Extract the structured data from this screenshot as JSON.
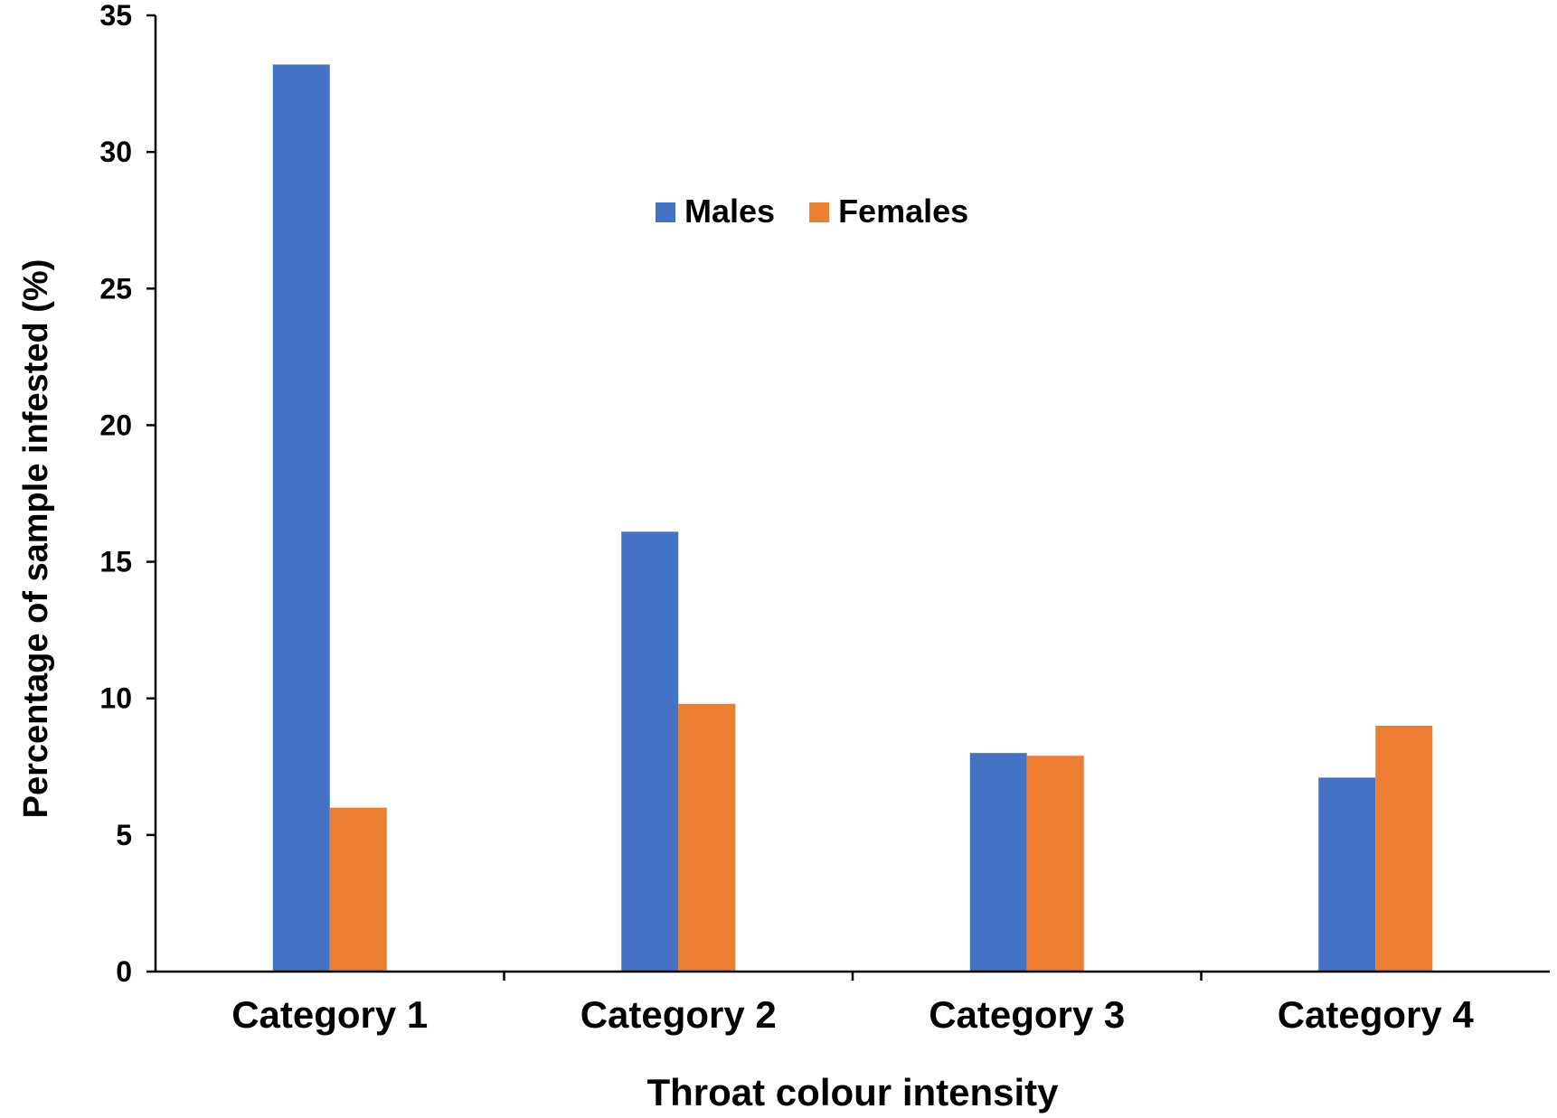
{
  "chart_data": {
    "type": "bar",
    "title": "",
    "xlabel": "Throat colour intensity",
    "ylabel": "Percentage of sample infested (%)",
    "categories": [
      "Category 1",
      "Category 2",
      "Category 3",
      "Category 4"
    ],
    "series": [
      {
        "name": "Males",
        "color": "#4472C4",
        "values": [
          33.2,
          16.1,
          8.0,
          7.1
        ]
      },
      {
        "name": "Females",
        "color": "#ED7D31",
        "values": [
          6.0,
          9.8,
          7.9,
          9.0
        ]
      }
    ],
    "ylim": [
      0,
      35
    ],
    "yticks": [
      0,
      5,
      10,
      15,
      20,
      25,
      30,
      35
    ],
    "grid": false,
    "legend_position": "top-center"
  }
}
